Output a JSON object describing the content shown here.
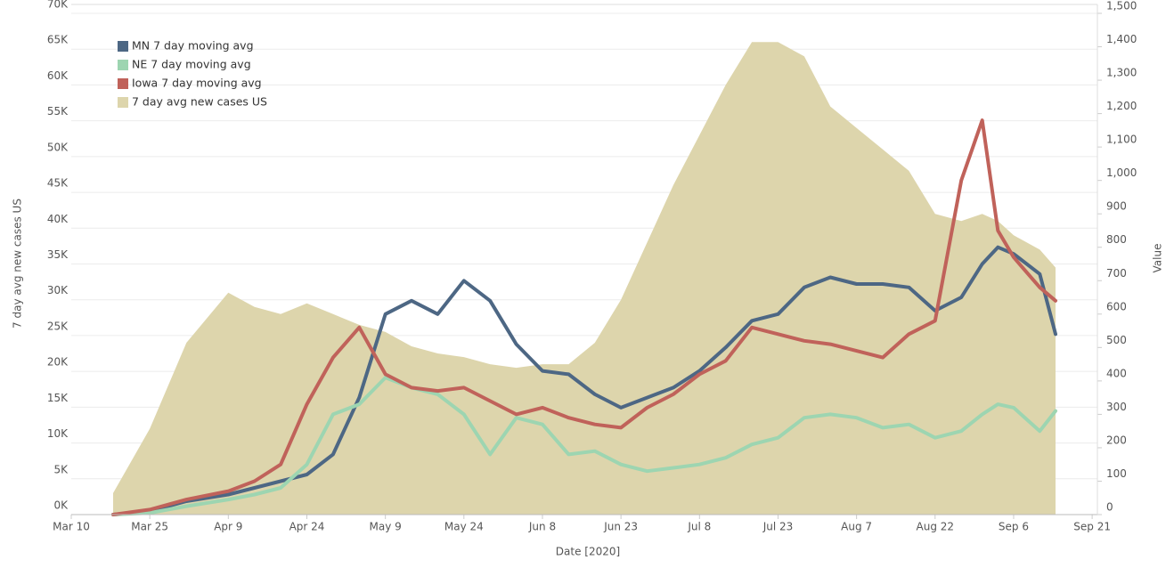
{
  "chart_data": {
    "type": "line",
    "x_label": "Date [2020]",
    "y_label": "7 day avg new cases US",
    "y2_label": "Value",
    "legend": "upper left",
    "grid": true,
    "xlim": [
      "2020-03-10",
      "2020-09-22"
    ],
    "xticks": [
      {
        "value": "2020-03-10",
        "label": "Mar 10"
      },
      {
        "value": "2020-03-25",
        "label": "Mar 25"
      },
      {
        "value": "2020-04-09",
        "label": "Apr 9"
      },
      {
        "value": "2020-04-24",
        "label": "Apr 24"
      },
      {
        "value": "2020-05-09",
        "label": "May 9"
      },
      {
        "value": "2020-05-24",
        "label": "May 24"
      },
      {
        "value": "2020-06-08",
        "label": "Jun 8"
      },
      {
        "value": "2020-06-23",
        "label": "Jun 23"
      },
      {
        "value": "2020-07-08",
        "label": "Jul 8"
      },
      {
        "value": "2020-07-23",
        "label": "Jul 23"
      },
      {
        "value": "2020-08-07",
        "label": "Aug 7"
      },
      {
        "value": "2020-08-22",
        "label": "Aug 22"
      },
      {
        "value": "2020-09-06",
        "label": "Sep 6"
      },
      {
        "value": "2020-09-21",
        "label": "Sep 21"
      }
    ],
    "ylim": [
      0,
      70000
    ],
    "yticks": [
      {
        "value": 0,
        "label": "0K"
      },
      {
        "value": 5000,
        "label": "5K"
      },
      {
        "value": 10000,
        "label": "10K"
      },
      {
        "value": 15000,
        "label": "15K"
      },
      {
        "value": 20000,
        "label": "20K"
      },
      {
        "value": 25000,
        "label": "25K"
      },
      {
        "value": 30000,
        "label": "30K"
      },
      {
        "value": 35000,
        "label": "35K"
      },
      {
        "value": 40000,
        "label": "40K"
      },
      {
        "value": 45000,
        "label": "45K"
      },
      {
        "value": 50000,
        "label": "50K"
      },
      {
        "value": 55000,
        "label": "55K"
      },
      {
        "value": 60000,
        "label": "60K"
      },
      {
        "value": 65000,
        "label": "65K"
      },
      {
        "value": 70000,
        "label": "70K"
      }
    ],
    "y2lim": [
      0,
      1500
    ],
    "y2ticks": [
      0,
      100,
      200,
      300,
      400,
      500,
      600,
      700,
      800,
      900,
      {
        "value": 1000,
        "label": "1,000"
      },
      {
        "value": 1100,
        "label": "1,100"
      },
      {
        "value": 1200,
        "label": "1,200"
      },
      {
        "value": 1300,
        "label": "1,300"
      },
      {
        "value": 1400,
        "label": "1,400"
      },
      {
        "value": 1500,
        "label": "1,500"
      }
    ],
    "x": [
      "2020-03-18",
      "2020-03-25",
      "2020-04-01",
      "2020-04-09",
      "2020-04-14",
      "2020-04-19",
      "2020-04-24",
      "2020-04-29",
      "2020-05-04",
      "2020-05-09",
      "2020-05-14",
      "2020-05-19",
      "2020-05-24",
      "2020-05-29",
      "2020-06-03",
      "2020-06-08",
      "2020-06-13",
      "2020-06-18",
      "2020-06-23",
      "2020-06-28",
      "2020-07-03",
      "2020-07-08",
      "2020-07-13",
      "2020-07-18",
      "2020-07-23",
      "2020-07-28",
      "2020-08-02",
      "2020-08-07",
      "2020-08-12",
      "2020-08-17",
      "2020-08-22",
      "2020-08-27",
      "2020-08-31",
      "2020-09-03",
      "2020-09-06",
      "2020-09-11",
      "2020-09-14"
    ],
    "series": [
      {
        "name": "MN 7 day moving avg",
        "type": "line",
        "axis": "y2",
        "color": "#4d6784",
        "values": [
          0,
          10,
          40,
          60,
          80,
          100,
          120,
          180,
          350,
          600,
          640,
          600,
          700,
          640,
          510,
          430,
          420,
          360,
          320,
          350,
          380,
          430,
          500,
          580,
          600,
          680,
          710,
          690,
          690,
          680,
          610,
          650,
          750,
          800,
          780,
          720,
          540
        ]
      },
      {
        "name": "NE 7 day moving avg",
        "type": "line",
        "axis": "y2",
        "color": "#9dd5b1",
        "values": [
          0,
          5,
          25,
          45,
          60,
          80,
          150,
          300,
          330,
          410,
          380,
          360,
          300,
          180,
          290,
          270,
          180,
          190,
          150,
          130,
          140,
          150,
          170,
          210,
          230,
          290,
          300,
          290,
          260,
          270,
          230,
          250,
          300,
          330,
          320,
          250,
          310
        ]
      },
      {
        "name": "Iowa 7 day moving avg",
        "type": "line",
        "axis": "y2",
        "color": "#c0625a",
        "values": [
          0,
          15,
          45,
          70,
          100,
          150,
          330,
          470,
          560,
          420,
          380,
          370,
          380,
          340,
          300,
          320,
          290,
          270,
          260,
          320,
          360,
          420,
          460,
          560,
          540,
          520,
          510,
          490,
          470,
          540,
          580,
          1000,
          1180,
          850,
          770,
          680,
          640
        ]
      },
      {
        "name": "7 day avg new cases US",
        "type": "area",
        "axis": "y",
        "color": "#ddd5ac",
        "values": [
          3000,
          12000,
          24000,
          31000,
          29000,
          28000,
          29500,
          28000,
          26500,
          25500,
          23500,
          22500,
          22000,
          21000,
          20500,
          21000,
          21000,
          24000,
          30000,
          38000,
          46000,
          53000,
          60000,
          66000,
          66000,
          64000,
          57000,
          54000,
          51000,
          48000,
          42000,
          41000,
          42000,
          41000,
          39000,
          37000,
          34500
        ]
      }
    ]
  }
}
